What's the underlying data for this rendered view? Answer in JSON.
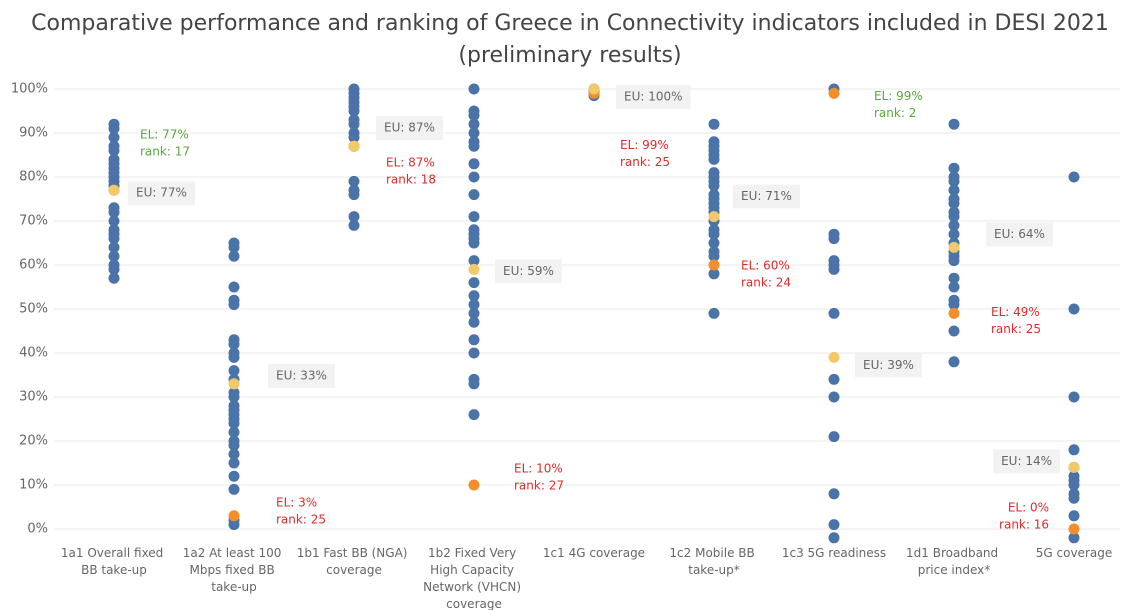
{
  "chart_data": {
    "type": "strip",
    "title": "Comparative performance and ranking of Greece in Connectivity indicators included in DESI 2021",
    "subtitle": "(preliminary results)",
    "categories": [
      "1a1 Overall fixed BB take-up",
      "1a2 At least 100 Mbps fixed BB take-up",
      "1b1 Fast BB (NGA) coverage",
      "1b2 Fixed Very High Capacity Network (VHCN) coverage",
      "1c1 4G coverage",
      "1c2 Mobile BB take-up*",
      "1c3 5G readiness",
      "1d1 Broadband price index*",
      "5G coverage"
    ],
    "dots": [
      [
        92,
        91,
        89,
        87,
        86,
        84,
        83,
        82,
        81,
        80,
        79,
        78,
        73,
        72,
        70,
        68,
        67,
        66,
        64,
        62,
        60,
        59,
        57
      ],
      [
        65,
        64,
        62,
        55,
        52,
        51,
        43,
        42,
        40,
        39,
        36,
        34,
        31,
        30,
        28,
        27,
        26,
        25,
        24,
        22,
        20,
        19,
        17,
        15,
        12,
        9,
        2,
        1
      ],
      [
        100,
        99,
        98,
        97,
        96,
        95,
        93,
        92,
        90,
        89,
        87,
        79,
        77,
        76,
        71,
        69
      ],
      [
        100,
        95,
        94,
        92,
        90,
        88,
        87,
        83,
        80,
        76,
        71,
        68,
        67,
        66,
        65,
        61,
        56,
        53,
        51,
        49,
        47,
        43,
        40,
        34,
        33,
        26
      ],
      [
        100,
        99.5,
        99,
        98.5
      ],
      [
        92,
        88,
        87,
        86,
        85,
        84,
        81,
        80,
        79,
        78,
        76,
        75,
        74,
        73,
        72,
        70,
        68,
        67,
        65,
        63,
        62,
        58,
        49
      ],
      [
        100,
        67,
        66,
        61,
        60,
        59,
        49,
        34,
        30,
        21,
        8,
        1,
        -2
      ],
      [
        92,
        82,
        80,
        79,
        77,
        75,
        74,
        72,
        71,
        69,
        67,
        65,
        63,
        62,
        61,
        57,
        55,
        52,
        51,
        45,
        38
      ],
      [
        80,
        50,
        30,
        18,
        14,
        12,
        11,
        10,
        8,
        7,
        3,
        -2
      ]
    ],
    "dot_color": "#4a73a8",
    "eu": {
      "values": [
        77,
        33,
        87,
        59,
        100,
        71,
        39,
        64,
        14
      ],
      "value_labels": [
        "EU: 77%",
        "EU: 33%",
        "EU: 87%",
        "EU: 59%",
        "EU: 100%",
        "EU: 71%",
        "EU: 39%",
        "EU: 64%",
        "EU: 14%"
      ],
      "color": "#f2c96a"
    },
    "el": {
      "values": [
        77,
        3,
        87,
        10,
        99,
        60,
        99,
        49,
        0
      ],
      "value_labels": [
        "EL: 77%",
        "EL: 3%",
        "EL: 87%",
        "EL: 10%",
        "EL: 99%",
        "EL: 60%",
        "EL: 99%",
        "EL: 49%",
        "EL: 0%"
      ],
      "rank_labels": [
        "rank: 17",
        "rank: 25",
        "rank: 18",
        "rank: 27",
        "rank: 25",
        "rank: 24",
        "rank: 2",
        "rank: 25",
        "rank: 16"
      ],
      "color": "#f28e2b",
      "label_colors": [
        "#5aa83c",
        "#e02b2b",
        "#e02b2b",
        "#e02b2b",
        "#e02b2b",
        "#e02b2b",
        "#5aa83c",
        "#e02b2b",
        "#e02b2b"
      ]
    },
    "ylim": [
      -3,
      102
    ],
    "yticks": [
      {
        "value": 0,
        "label": "0%"
      },
      {
        "value": 10,
        "label": "10%"
      },
      {
        "value": 20,
        "label": "20%"
      },
      {
        "value": 30,
        "label": "30%"
      },
      {
        "value": 40,
        "label": "40%"
      },
      {
        "value": 50,
        "label": "50%"
      },
      {
        "value": 60,
        "label": "60%"
      },
      {
        "value": 70,
        "label": "70%"
      },
      {
        "value": 80,
        "label": "80%"
      },
      {
        "value": 90,
        "label": "90%"
      },
      {
        "value": 100,
        "label": "100%"
      }
    ],
    "grid": true
  }
}
